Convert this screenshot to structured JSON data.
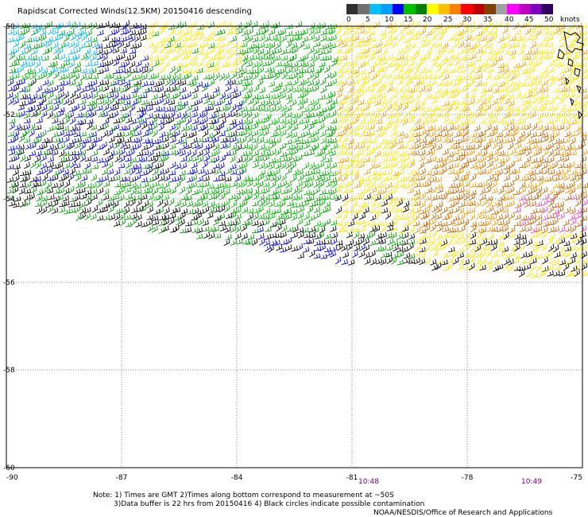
{
  "title": "Rapidscat Corrected Winds(12.5KM) 20150416 descending",
  "legend": {
    "colors": [
      "#303030",
      "#707070",
      "#00c0ff",
      "#00a0ff",
      "#0000ff",
      "#00c000",
      "#008000",
      "#ffff00",
      "#ffc000",
      "#ff8000",
      "#ff0000",
      "#c00000",
      "#804000",
      "#a0a0a0",
      "#ff00ff",
      "#c000c0",
      "#8000c0",
      "#300060"
    ],
    "labels": [
      "0",
      "5",
      "10",
      "15",
      "20",
      "25",
      "30",
      "35",
      "40",
      "45",
      "50",
      "knots"
    ]
  },
  "axes": {
    "lon_ticks": [
      "-90",
      "-87",
      "-84",
      "-81",
      "-78",
      "-75"
    ],
    "lat_ticks": [
      "-50",
      "-52",
      "-54",
      "-56",
      "-58",
      "-60"
    ]
  },
  "times": [
    "10:48",
    "10:49"
  ],
  "notes": {
    "line1": "Note: 1) Times are GMT 2)Times along bottom correspond to measurement at ~50S",
    "line2": "3)Data buffer is 22 hrs from 20150416 4) Black circles indicate possible contamination",
    "line3": "NOAA/NESDIS/Office of Research and Applications"
  }
}
